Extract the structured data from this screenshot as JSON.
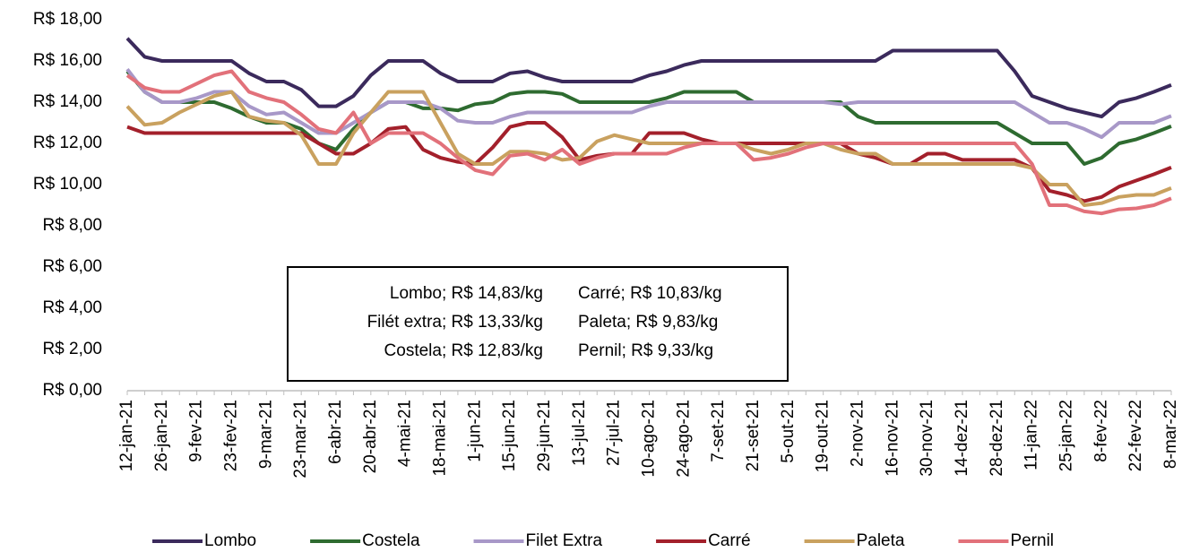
{
  "chart_data": {
    "type": "line",
    "categories": [
      "12-jan-21",
      null,
      "26-jan-21",
      null,
      "9-fev-21",
      null,
      "23-fev-21",
      null,
      "9-mar-21",
      null,
      "23-mar-21",
      null,
      "6-abr-21",
      null,
      "20-abr-21",
      null,
      "4-mai-21",
      null,
      "18-mai-21",
      null,
      "1-jun-21",
      null,
      "15-jun-21",
      null,
      "29-jun-21",
      null,
      "13-jul-21",
      null,
      "27-jul-21",
      null,
      "10-ago-21",
      null,
      "24-ago-21",
      null,
      "7-set-21",
      null,
      "21-set-21",
      null,
      "5-out-21",
      null,
      "19-out-21",
      null,
      "2-nov-21",
      null,
      "16-nov-21",
      null,
      "30-nov-21",
      null,
      "14-dez-21",
      null,
      "28-dez-21",
      null,
      "11-jan-22",
      null,
      "25-jan-22",
      null,
      "8-fev-22",
      null,
      "22-fev-22",
      null,
      "8-mar-22"
    ],
    "series": [
      {
        "name": "Lombo",
        "color": "#3b2a5c",
        "values": [
          17.1,
          16.2,
          16,
          16,
          16,
          16,
          16,
          15.4,
          15,
          15,
          14.6,
          13.8,
          13.8,
          14.3,
          15.3,
          16,
          16,
          16,
          15.4,
          15,
          15,
          15,
          15.4,
          15.5,
          15.2,
          15,
          15,
          15,
          15,
          15,
          15.3,
          15.5,
          15.8,
          16,
          16,
          16,
          16,
          16,
          16,
          16,
          16,
          16,
          16,
          16,
          16.5,
          16.5,
          16.5,
          16.5,
          16.5,
          16.5,
          16.5,
          15.5,
          14.3,
          14,
          13.7,
          13.5,
          13.3,
          14,
          14.2,
          14.5,
          14.83
        ]
      },
      {
        "name": "Costela",
        "color": "#2e6b30",
        "values": [
          15.5,
          14.5,
          14,
          14,
          14,
          14,
          13.7,
          13.3,
          13,
          13,
          12.7,
          12,
          11.7,
          12.7,
          13.5,
          14,
          14,
          13.7,
          13.7,
          13.6,
          13.9,
          14,
          14.4,
          14.5,
          14.5,
          14.4,
          14,
          14,
          14,
          14,
          14,
          14.2,
          14.5,
          14.5,
          14.5,
          14.5,
          14,
          14,
          14,
          14,
          14,
          14,
          13.3,
          13,
          13,
          13,
          13,
          13,
          13,
          13,
          13,
          12.5,
          12,
          12,
          12,
          11,
          11.3,
          12,
          12.2,
          12.5,
          12.83
        ]
      },
      {
        "name": "Filet Extra",
        "color": "#a898c8",
        "values": [
          15.6,
          14.5,
          14,
          14,
          14.2,
          14.5,
          14.5,
          13.8,
          13.4,
          13.5,
          13,
          12.5,
          12.5,
          13,
          13.5,
          14,
          14,
          14,
          13.7,
          13.1,
          13,
          13,
          13.3,
          13.5,
          13.5,
          13.5,
          13.5,
          13.5,
          13.5,
          13.5,
          13.8,
          14,
          14,
          14,
          14,
          14,
          14,
          14,
          14,
          14,
          14,
          13.9,
          14,
          14,
          14,
          14,
          14,
          14,
          14,
          14,
          14,
          14,
          13.5,
          13,
          13,
          12.7,
          12.3,
          13,
          13,
          13,
          13.33
        ]
      },
      {
        "name": "Carré",
        "color": "#a3202b",
        "values": [
          12.8,
          12.5,
          12.5,
          12.5,
          12.5,
          12.5,
          12.5,
          12.5,
          12.5,
          12.5,
          12.5,
          12,
          11.5,
          11.5,
          12,
          12.7,
          12.8,
          11.7,
          11.3,
          11.1,
          11,
          11.8,
          12.8,
          13,
          13,
          12.3,
          11.2,
          11.4,
          11.5,
          11.5,
          12.5,
          12.5,
          12.5,
          12.2,
          12,
          12,
          12,
          12,
          12,
          12,
          12,
          12,
          11.5,
          11.3,
          11,
          11,
          11.5,
          11.5,
          11.2,
          11.2,
          11.2,
          11.2,
          10.8,
          9.7,
          9.5,
          9.2,
          9.4,
          9.9,
          10.2,
          10.5,
          10.83
        ]
      },
      {
        "name": "Paleta",
        "color": "#c9a15f",
        "values": [
          13.8,
          12.9,
          13,
          13.5,
          13.9,
          14.3,
          14.5,
          13.3,
          13.1,
          13,
          12.4,
          11,
          11,
          12.5,
          13.5,
          14.5,
          14.5,
          14.5,
          13,
          11.5,
          11,
          11,
          11.6,
          11.6,
          11.5,
          11.2,
          11.3,
          12.1,
          12.4,
          12.2,
          12,
          12,
          12,
          12,
          12,
          12,
          11.7,
          11.5,
          11.7,
          12,
          12,
          11.7,
          11.5,
          11.5,
          11,
          11,
          11,
          11,
          11,
          11,
          11,
          11,
          10.8,
          10,
          10,
          9,
          9.1,
          9.4,
          9.5,
          9.5,
          9.83
        ]
      },
      {
        "name": "Pernil",
        "color": "#e2717a",
        "values": [
          15.3,
          14.7,
          14.5,
          14.5,
          14.9,
          15.3,
          15.5,
          14.5,
          14.2,
          14,
          13.4,
          12.7,
          12.5,
          13.5,
          12,
          12.5,
          12.5,
          12.5,
          12,
          11.3,
          10.7,
          10.5,
          11.4,
          11.5,
          11.2,
          11.7,
          11,
          11.3,
          11.5,
          11.5,
          11.5,
          11.5,
          11.8,
          12,
          12,
          12,
          11.2,
          11.3,
          11.5,
          11.8,
          12,
          12,
          12,
          12,
          12,
          12,
          12,
          12,
          12,
          12,
          12,
          12,
          11,
          9,
          9,
          8.7,
          8.6,
          8.8,
          8.85,
          9,
          9.33
        ]
      }
    ],
    "ylim": [
      0,
      18
    ],
    "yticks": [
      {
        "value": 0,
        "label": "R$ 0,00"
      },
      {
        "value": 2,
        "label": "R$ 2,00"
      },
      {
        "value": 4,
        "label": "R$ 4,00"
      },
      {
        "value": 6,
        "label": "R$ 6,00"
      },
      {
        "value": 8,
        "label": "R$ 8,00"
      },
      {
        "value": 10,
        "label": "R$ 10,00"
      },
      {
        "value": 12,
        "label": "R$ 12,00"
      },
      {
        "value": 14,
        "label": "R$ 14,00"
      },
      {
        "value": 16,
        "label": "R$ 16,00"
      },
      {
        "value": 18,
        "label": "R$ 18,00"
      }
    ],
    "annotations": [
      "Lombo; R$ 14,83/kg",
      "Filét extra; R$ 13,33/kg",
      "Costela; R$ 12,83/kg",
      "Carré; R$ 10,83/kg",
      "Paleta; R$ 9,83/kg",
      "Pernil; R$ 9,33/kg"
    ],
    "legend": "bottom"
  }
}
